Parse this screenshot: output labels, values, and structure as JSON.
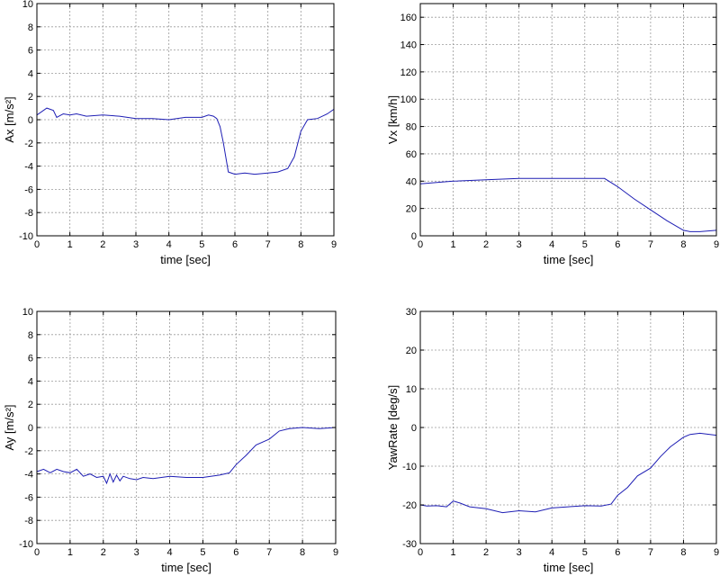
{
  "colors": {
    "series": "#1e1eb4",
    "grid": "#9a9a9a",
    "axes": "#000000"
  },
  "chart_data": [
    {
      "type": "line",
      "xlabel": "time [sec]",
      "ylabel": "Ax [m/s²]",
      "xlim": [
        0,
        9
      ],
      "ylim": [
        -10,
        10
      ],
      "xticks": [
        0,
        1,
        2,
        3,
        4,
        5,
        6,
        7,
        8,
        9
      ],
      "yticks": [
        -10,
        -8,
        -6,
        -4,
        -2,
        0,
        2,
        4,
        6,
        8,
        10
      ],
      "grid": true,
      "series": [
        {
          "x": [
            0,
            0.3,
            0.5,
            0.6,
            0.8,
            1.0,
            1.2,
            1.5,
            2.0,
            2.5,
            3.0,
            3.5,
            4.0,
            4.5,
            5.0,
            5.2,
            5.35,
            5.45,
            5.55,
            5.65,
            5.8,
            6.0,
            6.3,
            6.6,
            7.0,
            7.3,
            7.6,
            7.8,
            8.0,
            8.2,
            8.5,
            8.8,
            9.0
          ],
          "y": [
            0.4,
            1.0,
            0.8,
            0.2,
            0.5,
            0.4,
            0.5,
            0.3,
            0.4,
            0.3,
            0.1,
            0.1,
            0.0,
            0.2,
            0.2,
            0.4,
            0.3,
            0.1,
            -0.6,
            -2.0,
            -4.5,
            -4.7,
            -4.6,
            -4.7,
            -4.6,
            -4.5,
            -4.2,
            -3.2,
            -1.0,
            0.0,
            0.1,
            0.5,
            0.9
          ]
        }
      ]
    },
    {
      "type": "line",
      "xlabel": "time [sec]",
      "ylabel": "Vx [km/h]",
      "xlim": [
        0,
        9
      ],
      "ylim": [
        0,
        170
      ],
      "xticks": [
        0,
        1,
        2,
        3,
        4,
        5,
        6,
        7,
        8,
        9
      ],
      "yticks": [
        0,
        20,
        40,
        60,
        80,
        100,
        120,
        140,
        160
      ],
      "grid": true,
      "series": [
        {
          "x": [
            0,
            0.5,
            1,
            2,
            3,
            4,
            5,
            5.6,
            6,
            6.5,
            7,
            7.5,
            8,
            8.2,
            8.5,
            9
          ],
          "y": [
            38,
            39,
            40,
            41,
            42,
            42,
            42,
            42,
            36,
            27,
            19,
            11,
            4,
            3,
            3,
            4
          ]
        }
      ]
    },
    {
      "type": "line",
      "xlabel": "time [sec]",
      "ylabel": "Ay [m/s²]",
      "xlim": [
        0,
        9
      ],
      "ylim": [
        -10,
        10
      ],
      "xticks": [
        0,
        1,
        2,
        3,
        4,
        5,
        6,
        7,
        8,
        9
      ],
      "yticks": [
        -10,
        -8,
        -6,
        -4,
        -2,
        0,
        2,
        4,
        6,
        8,
        10
      ],
      "grid": true,
      "series": [
        {
          "x": [
            0,
            0.2,
            0.4,
            0.6,
            0.8,
            1.0,
            1.2,
            1.4,
            1.6,
            1.8,
            2.0,
            2.1,
            2.2,
            2.3,
            2.4,
            2.5,
            2.6,
            2.8,
            3.0,
            3.2,
            3.5,
            4.0,
            4.5,
            5.0,
            5.5,
            5.8,
            6.0,
            6.3,
            6.6,
            7.0,
            7.3,
            7.6,
            8.0,
            8.5,
            9.0
          ],
          "y": [
            -3.8,
            -3.6,
            -3.9,
            -3.6,
            -3.8,
            -3.9,
            -3.6,
            -4.2,
            -4.0,
            -4.3,
            -4.2,
            -4.8,
            -4.0,
            -4.7,
            -4.1,
            -4.6,
            -4.2,
            -4.4,
            -4.5,
            -4.3,
            -4.4,
            -4.2,
            -4.3,
            -4.3,
            -4.1,
            -3.9,
            -3.2,
            -2.4,
            -1.5,
            -1.0,
            -0.3,
            -0.1,
            0.0,
            -0.1,
            0.0
          ]
        }
      ]
    },
    {
      "type": "line",
      "xlabel": "time [sec]",
      "ylabel": "YawRate [deg/s]",
      "xlim": [
        0,
        9
      ],
      "ylim": [
        -30,
        30
      ],
      "xticks": [
        0,
        1,
        2,
        3,
        4,
        5,
        6,
        7,
        8,
        9
      ],
      "yticks": [
        -30,
        -20,
        -10,
        0,
        10,
        20,
        30
      ],
      "grid": true,
      "series": [
        {
          "x": [
            0,
            0.2,
            0.5,
            0.8,
            1.0,
            1.2,
            1.5,
            2.0,
            2.5,
            3.0,
            3.5,
            4.0,
            4.5,
            5.0,
            5.5,
            5.8,
            6.0,
            6.3,
            6.6,
            7.0,
            7.3,
            7.6,
            8.0,
            8.2,
            8.5,
            9.0
          ],
          "y": [
            -20,
            -20.3,
            -20.2,
            -20.5,
            -19,
            -19.5,
            -20.5,
            -21,
            -22,
            -21.5,
            -21.8,
            -20.8,
            -20.5,
            -20.2,
            -20.3,
            -19.8,
            -17.5,
            -15.5,
            -12.5,
            -10.5,
            -7.5,
            -5,
            -2.5,
            -1.8,
            -1.5,
            -2
          ]
        }
      ]
    }
  ]
}
